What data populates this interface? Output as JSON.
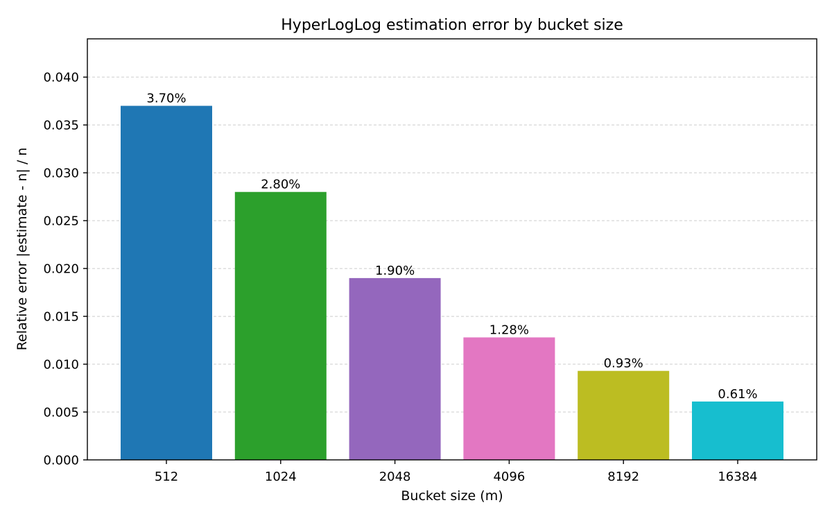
{
  "chart_data": {
    "type": "bar",
    "title": "HyperLogLog estimation error by bucket size",
    "xlabel": "Bucket size (m)",
    "ylabel": "Relative error |estimate - n| / n",
    "categories": [
      "512",
      "1024",
      "2048",
      "4096",
      "8192",
      "16384"
    ],
    "values": [
      0.037,
      0.028,
      0.019,
      0.0128,
      0.0093,
      0.0061
    ],
    "data_labels": [
      "3.70%",
      "2.80%",
      "1.90%",
      "1.28%",
      "0.93%",
      "0.61%"
    ],
    "colors": [
      "#1f77b4",
      "#2ca02c",
      "#9467bd",
      "#e377c2",
      "#bcbd22",
      "#17becf"
    ],
    "ylim": [
      0,
      0.044
    ],
    "yticks": [
      0.0,
      0.005,
      0.01,
      0.015,
      0.02,
      0.025,
      0.03,
      0.035,
      0.04
    ],
    "ytick_labels": [
      "0.000",
      "0.005",
      "0.010",
      "0.015",
      "0.020",
      "0.025",
      "0.030",
      "0.035",
      "0.040"
    ],
    "grid": "y-dashed",
    "legend": "none"
  }
}
